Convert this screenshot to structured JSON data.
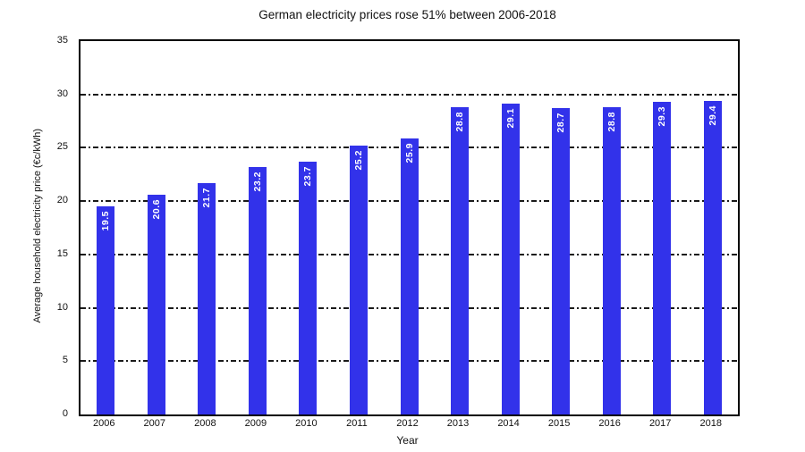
{
  "chart_data": {
    "type": "bar",
    "title": "German electricity prices rose 51% between 2006-2018",
    "xlabel": "Year",
    "ylabel": "Average household electricity price (€c/kWh)",
    "categories": [
      "2006",
      "2007",
      "2008",
      "2009",
      "2010",
      "2011",
      "2012",
      "2013",
      "2014",
      "2015",
      "2016",
      "2017",
      "2018"
    ],
    "values": [
      19.5,
      20.6,
      21.7,
      23.2,
      23.7,
      25.2,
      25.9,
      28.8,
      29.1,
      28.7,
      28.8,
      29.3,
      29.4
    ],
    "bar_labels": [
      "19.5",
      "20.6",
      "21.7",
      "23.2",
      "23.7",
      "25.2",
      "25.9",
      "28.8",
      "29.1",
      "28.7",
      "28.8",
      "29.3",
      "29.4"
    ],
    "ylim": [
      0,
      35
    ],
    "yticks": [
      0,
      5,
      10,
      15,
      20,
      25,
      30,
      35
    ],
    "grid": "horizontal dash-dot lines at 5 unit intervals (5-30), plot area framed by solid black border",
    "legend": "none",
    "colors": {
      "bar": "#3232EA",
      "bar_label_text": "#FFFFFF",
      "axis_line": "#000000",
      "gridline": "#1A1A1A",
      "text": "#111111",
      "background": "#FFFFFF"
    }
  }
}
